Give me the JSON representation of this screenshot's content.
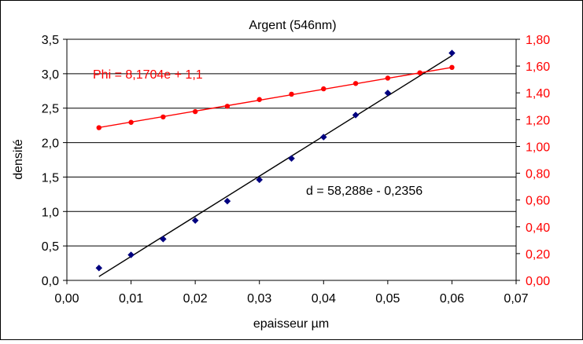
{
  "chart_data": {
    "type": "scatter",
    "title": "Argent (546nm)",
    "xlabel": "epaisseur µm",
    "ylabel": "densité",
    "y2label": "",
    "xlim": [
      0,
      0.07
    ],
    "ylim": [
      0,
      3.5
    ],
    "y2lim": [
      0,
      1.8
    ],
    "x_ticks": [
      "0,00",
      "0,01",
      "0,02",
      "0,03",
      "0,04",
      "0,05",
      "0,06",
      "0,07"
    ],
    "y_ticks": [
      "0,0",
      "0,5",
      "1,0",
      "1,5",
      "2,0",
      "2,5",
      "3,0",
      "3,5"
    ],
    "y2_ticks": [
      "0,00",
      "0,20",
      "0,40",
      "0,60",
      "0,80",
      "1,00",
      "1,20",
      "1,40",
      "1,60",
      "1,80"
    ],
    "grid": "horizontal",
    "colors": {
      "density": "#000080",
      "phi": "#ff0000",
      "density_trend": "#000000",
      "phi_trend": "#ff0000"
    },
    "series": [
      {
        "axis": "left",
        "marker": "diamond",
        "x": [
          0.005,
          0.01,
          0.015,
          0.02,
          0.025,
          0.03,
          0.035,
          0.04,
          0.045,
          0.05,
          0.06
        ],
        "y": [
          0.18,
          0.37,
          0.6,
          0.87,
          1.15,
          1.46,
          1.77,
          2.08,
          2.4,
          2.72,
          3.3
        ]
      },
      {
        "axis": "right",
        "marker": "circle",
        "x": [
          0.005,
          0.01,
          0.015,
          0.02,
          0.025,
          0.03,
          0.035,
          0.04,
          0.045,
          0.05,
          0.055,
          0.06
        ],
        "y": [
          1.14,
          1.18,
          1.22,
          1.26,
          1.3,
          1.35,
          1.39,
          1.43,
          1.47,
          1.51,
          1.55,
          1.59
        ]
      }
    ],
    "trendlines": [
      {
        "axis": "left",
        "slope": 58.288,
        "intercept": -0.2356,
        "x_range": [
          0.005,
          0.06
        ],
        "label": "d = 58,288e - 0,2356"
      },
      {
        "axis": "right",
        "slope": 8.1704,
        "intercept": 1.1,
        "x_range": [
          0.005,
          0.06
        ],
        "label": "Phi = 8,1704e + 1,1"
      }
    ]
  }
}
